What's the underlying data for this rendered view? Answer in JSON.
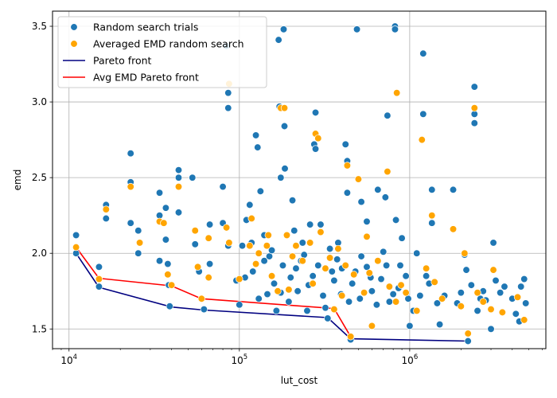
{
  "chart_data": {
    "type": "scatter",
    "title": "",
    "xlabel": "lut_cost",
    "ylabel": "emd",
    "xscale": "log",
    "xlim": [
      8000,
      6300000
    ],
    "ylim": [
      1.37,
      3.6
    ],
    "x_ticks": [
      {
        "value": 10000,
        "base": "10",
        "exp": "4"
      },
      {
        "value": 100000,
        "base": "10",
        "exp": "5"
      },
      {
        "value": 1000000,
        "base": "10",
        "exp": "6"
      }
    ],
    "y_ticks": [
      {
        "value": 1.5,
        "label": "1.5"
      },
      {
        "value": 2.0,
        "label": "2.0"
      },
      {
        "value": 2.5,
        "label": "2.5"
      },
      {
        "value": 3.0,
        "label": "3.0"
      },
      {
        "value": 3.5,
        "label": "3.5"
      }
    ],
    "grid": true,
    "legend_position": "top-left",
    "legend": [
      {
        "label": "Random search trials",
        "kind": "marker",
        "color": "#1f77b4"
      },
      {
        "label": "Averaged EMD random search",
        "kind": "marker",
        "color": "#ffa500"
      },
      {
        "label": "Pareto front",
        "kind": "line",
        "color": "#000080"
      },
      {
        "label": "Avg EMD Pareto front",
        "kind": "line",
        "color": "#ff0000"
      }
    ],
    "series": [
      {
        "name": "Random search trials",
        "kind": "scatter",
        "color": "#1f77b4",
        "points": [
          [
            11000,
            2.0
          ],
          [
            11000,
            2.12
          ],
          [
            15000,
            1.91
          ],
          [
            15000,
            1.78
          ],
          [
            16500,
            2.32
          ],
          [
            16500,
            2.23
          ],
          [
            23000,
            2.66
          ],
          [
            23000,
            2.47
          ],
          [
            23000,
            2.2
          ],
          [
            25500,
            2.15
          ],
          [
            25500,
            2.0
          ],
          [
            34000,
            2.4
          ],
          [
            34000,
            2.25
          ],
          [
            34000,
            1.95
          ],
          [
            37000,
            2.3
          ],
          [
            37000,
            2.09
          ],
          [
            38000,
            1.93
          ],
          [
            38500,
            1.79
          ],
          [
            39000,
            1.65
          ],
          [
            44000,
            2.55
          ],
          [
            44000,
            2.5
          ],
          [
            44000,
            2.27
          ],
          [
            53000,
            2.5
          ],
          [
            55000,
            2.06
          ],
          [
            58000,
            1.88
          ],
          [
            62000,
            1.63
          ],
          [
            67000,
            2.19
          ],
          [
            67000,
            1.93
          ],
          [
            80000,
            2.44
          ],
          [
            80000,
            2.2
          ],
          [
            84000,
            3.37
          ],
          [
            86000,
            3.06
          ],
          [
            86000,
            2.96
          ],
          [
            86000,
            2.05
          ],
          [
            96000,
            1.82
          ],
          [
            100000,
            1.66
          ],
          [
            104000,
            2.05
          ],
          [
            110000,
            2.22
          ],
          [
            115000,
            2.32
          ],
          [
            125000,
            2.78
          ],
          [
            128000,
            2.7
          ],
          [
            133000,
            2.41
          ],
          [
            140000,
            2.12
          ],
          [
            150000,
            1.98
          ],
          [
            165000,
            1.62
          ],
          [
            170000,
            3.41
          ],
          [
            172000,
            2.97
          ],
          [
            175000,
            2.5
          ],
          [
            182000,
            3.48
          ],
          [
            184000,
            2.84
          ],
          [
            185000,
            2.56
          ],
          [
            205000,
            2.35
          ],
          [
            210000,
            2.15
          ],
          [
            230000,
            1.95
          ],
          [
            250000,
            1.62
          ],
          [
            260000,
            2.19
          ],
          [
            275000,
            2.72
          ],
          [
            280000,
            2.93
          ],
          [
            280000,
            2.69
          ],
          [
            300000,
            2.19
          ],
          [
            330000,
            1.57
          ],
          [
            350000,
            1.88
          ],
          [
            380000,
            2.07
          ],
          [
            420000,
            2.72
          ],
          [
            430000,
            2.61
          ],
          [
            430000,
            2.4
          ],
          [
            450000,
            1.43
          ],
          [
            490000,
            3.48
          ],
          [
            520000,
            2.34
          ],
          [
            560000,
            2.21
          ],
          [
            650000,
            2.42
          ],
          [
            720000,
            2.37
          ],
          [
            740000,
            2.91
          ],
          [
            820000,
            3.5
          ],
          [
            820000,
            3.48
          ],
          [
            830000,
            2.22
          ],
          [
            900000,
            2.1
          ],
          [
            1000000,
            1.52
          ],
          [
            1100000,
            2.0
          ],
          [
            1200000,
            3.32
          ],
          [
            1200000,
            2.92
          ],
          [
            1350000,
            2.42
          ],
          [
            1350000,
            2.2
          ],
          [
            1500000,
            1.53
          ],
          [
            1800000,
            2.42
          ],
          [
            2100000,
            1.99
          ],
          [
            2200000,
            1.42
          ],
          [
            2400000,
            3.1
          ],
          [
            2400000,
            2.92
          ],
          [
            2400000,
            2.86
          ],
          [
            2600000,
            1.7
          ],
          [
            3000000,
            1.5
          ],
          [
            3100000,
            2.07
          ],
          [
            3600000,
            1.78
          ],
          [
            4500000,
            1.78
          ],
          [
            4700000,
            1.83
          ],
          [
            120000,
            1.88
          ],
          [
            140000,
            1.95
          ],
          [
            160000,
            1.8
          ],
          [
            180000,
            1.92
          ],
          [
            200000,
            1.84
          ],
          [
            220000,
            1.75
          ],
          [
            240000,
            1.99
          ],
          [
            270000,
            1.85
          ],
          [
            310000,
            1.72
          ],
          [
            360000,
            1.82
          ],
          [
            400000,
            1.9
          ],
          [
            460000,
            1.8
          ],
          [
            520000,
            1.98
          ],
          [
            600000,
            1.75
          ],
          [
            680000,
            1.83
          ],
          [
            760000,
            1.68
          ],
          [
            860000,
            1.77
          ],
          [
            950000,
            1.85
          ],
          [
            1050000,
            1.62
          ],
          [
            1300000,
            1.8
          ],
          [
            1600000,
            1.72
          ],
          [
            1900000,
            1.67
          ],
          [
            2300000,
            1.79
          ],
          [
            2800000,
            1.69
          ],
          [
            3400000,
            1.74
          ],
          [
            4200000,
            1.6
          ],
          [
            4800000,
            1.67
          ],
          [
            130000,
            1.7
          ],
          [
            155000,
            2.02
          ],
          [
            195000,
            1.68
          ],
          [
            235000,
            2.07
          ],
          [
            290000,
            1.92
          ],
          [
            340000,
            2.03
          ],
          [
            395000,
            1.73
          ],
          [
            480000,
            1.88
          ],
          [
            560000,
            1.91
          ],
          [
            640000,
            1.66
          ],
          [
            730000,
            1.92
          ],
          [
            800000,
            1.73
          ],
          [
            1150000,
            1.72
          ],
          [
            1450000,
            1.67
          ],
          [
            2000000,
            1.74
          ],
          [
            2500000,
            1.62
          ],
          [
            3200000,
            1.82
          ],
          [
            4400000,
            1.55
          ],
          [
            108000,
            1.84
          ],
          [
            118000,
            2.07
          ],
          [
            146000,
            1.73
          ],
          [
            175000,
            1.74
          ],
          [
            215000,
            1.9
          ],
          [
            255000,
            1.79
          ],
          [
            320000,
            1.64
          ],
          [
            375000,
            1.96
          ],
          [
            440000,
            1.68
          ],
          [
            510000,
            1.7
          ],
          [
            590000,
            1.84
          ],
          [
            700000,
            2.01
          ],
          [
            880000,
            1.92
          ],
          [
            980000,
            1.7
          ],
          [
            1250000,
            1.85
          ],
          [
            2150000,
            1.89
          ],
          [
            2700000,
            1.75
          ],
          [
            4000000,
            1.7
          ]
        ]
      },
      {
        "name": "Averaged EMD random search",
        "kind": "scatter",
        "color": "#ffa500",
        "points": [
          [
            11000,
            2.04
          ],
          [
            15000,
            1.83
          ],
          [
            16500,
            2.29
          ],
          [
            23000,
            2.44
          ],
          [
            26000,
            2.07
          ],
          [
            34000,
            2.21
          ],
          [
            36000,
            2.2
          ],
          [
            38000,
            1.86
          ],
          [
            40000,
            1.79
          ],
          [
            44000,
            2.44
          ],
          [
            55000,
            2.15
          ],
          [
            57000,
            1.91
          ],
          [
            60000,
            1.7
          ],
          [
            66000,
            2.1
          ],
          [
            66000,
            1.84
          ],
          [
            84000,
            2.17
          ],
          [
            87000,
            3.12
          ],
          [
            87000,
            2.07
          ],
          [
            100000,
            1.83
          ],
          [
            115000,
            2.05
          ],
          [
            118000,
            2.23
          ],
          [
            130000,
            2.0
          ],
          [
            148000,
            2.12
          ],
          [
            168000,
            1.75
          ],
          [
            175000,
            2.96
          ],
          [
            184000,
            2.96
          ],
          [
            190000,
            2.12
          ],
          [
            215000,
            2.05
          ],
          [
            260000,
            2.07
          ],
          [
            280000,
            2.79
          ],
          [
            290000,
            2.76
          ],
          [
            300000,
            2.14
          ],
          [
            360000,
            1.63
          ],
          [
            380000,
            2.03
          ],
          [
            430000,
            2.58
          ],
          [
            450000,
            1.45
          ],
          [
            500000,
            2.49
          ],
          [
            560000,
            2.11
          ],
          [
            600000,
            1.52
          ],
          [
            740000,
            2.54
          ],
          [
            840000,
            3.06
          ],
          [
            890000,
            1.79
          ],
          [
            1180000,
            2.75
          ],
          [
            1350000,
            2.25
          ],
          [
            1400000,
            1.81
          ],
          [
            1800000,
            2.16
          ],
          [
            2200000,
            1.47
          ],
          [
            2400000,
            2.96
          ],
          [
            2500000,
            1.74
          ],
          [
            3000000,
            1.63
          ],
          [
            3100000,
            1.89
          ],
          [
            4300000,
            1.71
          ],
          [
            4700000,
            1.56
          ],
          [
            125000,
            1.93
          ],
          [
            155000,
            1.85
          ],
          [
            195000,
            1.76
          ],
          [
            235000,
            1.95
          ],
          [
            270000,
            1.8
          ],
          [
            320000,
            1.9
          ],
          [
            400000,
            1.72
          ],
          [
            470000,
            1.86
          ],
          [
            540000,
            1.74
          ],
          [
            650000,
            1.95
          ],
          [
            760000,
            1.78
          ],
          [
            950000,
            1.74
          ],
          [
            1100000,
            1.62
          ],
          [
            1550000,
            1.7
          ],
          [
            2000000,
            1.65
          ],
          [
            2700000,
            1.68
          ],
          [
            3500000,
            1.61
          ],
          [
            145000,
            2.05
          ],
          [
            205000,
            1.98
          ],
          [
            340000,
            1.97
          ],
          [
            420000,
            1.92
          ],
          [
            580000,
            1.87
          ],
          [
            830000,
            1.68
          ],
          [
            1250000,
            1.9
          ],
          [
            2100000,
            2.0
          ]
        ]
      },
      {
        "name": "Pareto front",
        "kind": "line",
        "color": "#000080",
        "points": [
          [
            11000,
            2.0
          ],
          [
            15000,
            1.775
          ],
          [
            40000,
            1.645
          ],
          [
            62000,
            1.625
          ],
          [
            330000,
            1.575
          ],
          [
            450000,
            1.435
          ],
          [
            2200000,
            1.42
          ]
        ]
      },
      {
        "name": "Avg EMD Pareto front",
        "kind": "line",
        "color": "#ff0000",
        "points": [
          [
            11000,
            2.04
          ],
          [
            15000,
            1.835
          ],
          [
            40000,
            1.785
          ],
          [
            60000,
            1.7
          ],
          [
            360000,
            1.635
          ],
          [
            450000,
            1.45
          ]
        ]
      }
    ]
  }
}
